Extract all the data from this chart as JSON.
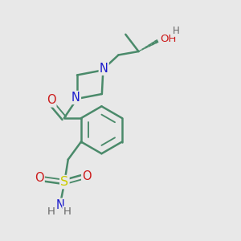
{
  "background_color": "#e8e8e8",
  "bond_color": "#4a8a6a",
  "bond_width": 1.8,
  "atom_colors": {
    "N": "#1a1acc",
    "O": "#cc1a1a",
    "S": "#cccc00",
    "H": "#666666",
    "C": "#4a8a6a"
  },
  "font_size": 9.5
}
